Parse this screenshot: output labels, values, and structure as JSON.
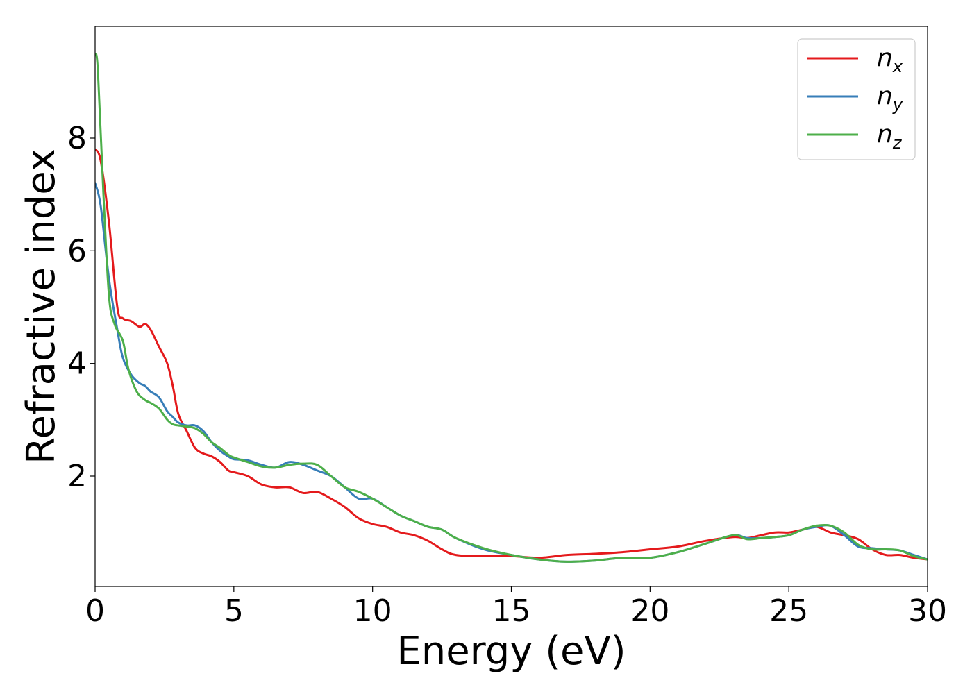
{
  "chart_data": {
    "type": "line",
    "title": "",
    "xlabel": "Energy (eV)",
    "ylabel": "Refractive index",
    "xlim": [
      0,
      30
    ],
    "ylim": [
      0,
      10
    ],
    "xticks": [
      0,
      5,
      10,
      15,
      20,
      25,
      30
    ],
    "xtick_labels": [
      "0",
      "5",
      "10",
      "15",
      "20",
      "25",
      "30"
    ],
    "yticks": [
      2,
      4,
      6,
      8
    ],
    "ytick_labels": [
      "2",
      "4",
      "6",
      "8"
    ],
    "grid": false,
    "legend_position": "top-right",
    "series": [
      {
        "name": "n",
        "subscript": "x",
        "color": "#e41a1c",
        "x": [
          0,
          0.2,
          0.5,
          0.8,
          1.0,
          1.3,
          1.6,
          1.8,
          2.0,
          2.3,
          2.6,
          2.8,
          3.0,
          3.3,
          3.6,
          3.9,
          4.2,
          4.5,
          4.8,
          5.0,
          5.5,
          6.0,
          6.5,
          7.0,
          7.5,
          8.0,
          8.5,
          9.0,
          9.5,
          10.0,
          10.5,
          11.0,
          11.5,
          12.0,
          12.5,
          13.0,
          14.0,
          15.0,
          16.0,
          17.0,
          18.0,
          19.0,
          20.0,
          21.0,
          22.0,
          23.0,
          23.5,
          24.0,
          24.5,
          25.0,
          25.5,
          26.0,
          26.5,
          27.0,
          27.5,
          28.0,
          28.5,
          29.0,
          29.5,
          30.0
        ],
        "y": [
          7.8,
          7.6,
          6.5,
          5.0,
          4.8,
          4.75,
          4.65,
          4.7,
          4.6,
          4.3,
          4.0,
          3.6,
          3.1,
          2.8,
          2.5,
          2.4,
          2.35,
          2.25,
          2.1,
          2.07,
          2.0,
          1.85,
          1.8,
          1.8,
          1.7,
          1.72,
          1.6,
          1.45,
          1.25,
          1.15,
          1.1,
          1.0,
          0.95,
          0.85,
          0.7,
          0.6,
          0.58,
          0.58,
          0.55,
          0.6,
          0.62,
          0.65,
          0.7,
          0.75,
          0.85,
          0.92,
          0.9,
          0.95,
          1.0,
          1.0,
          1.05,
          1.1,
          1.0,
          0.95,
          0.88,
          0.7,
          0.6,
          0.6,
          0.55,
          0.52
        ]
      },
      {
        "name": "n",
        "subscript": "y",
        "color": "#377eb8",
        "x": [
          0,
          0.2,
          0.5,
          0.8,
          1.0,
          1.3,
          1.6,
          1.8,
          2.0,
          2.3,
          2.6,
          2.8,
          3.0,
          3.3,
          3.6,
          3.9,
          4.2,
          4.5,
          4.8,
          5.0,
          5.5,
          6.0,
          6.5,
          7.0,
          7.5,
          8.0,
          8.5,
          9.0,
          9.5,
          10.0,
          10.5,
          11.0,
          11.5,
          12.0,
          12.5,
          13.0,
          14.0,
          15.0,
          16.0,
          17.0,
          18.0,
          19.0,
          20.0,
          21.0,
          22.0,
          23.0,
          23.5,
          24.0,
          24.5,
          25.0,
          25.5,
          26.0,
          26.5,
          27.0,
          27.5,
          28.0,
          28.5,
          29.0,
          29.5,
          30.0
        ],
        "y": [
          7.2,
          6.8,
          5.5,
          4.6,
          4.1,
          3.8,
          3.65,
          3.6,
          3.5,
          3.4,
          3.15,
          3.05,
          2.95,
          2.9,
          2.9,
          2.8,
          2.6,
          2.45,
          2.35,
          2.3,
          2.28,
          2.2,
          2.15,
          2.25,
          2.2,
          2.1,
          2.0,
          1.8,
          1.6,
          1.6,
          1.45,
          1.3,
          1.2,
          1.1,
          1.05,
          0.9,
          0.7,
          0.6,
          0.52,
          0.48,
          0.5,
          0.55,
          0.55,
          0.65,
          0.8,
          0.95,
          0.9,
          0.9,
          0.92,
          0.95,
          1.05,
          1.1,
          1.12,
          0.95,
          0.75,
          0.72,
          0.7,
          0.68,
          0.6,
          0.52
        ]
      },
      {
        "name": "n",
        "subscript": "z",
        "color": "#4daf4a",
        "x": [
          0,
          0.1,
          0.3,
          0.5,
          0.7,
          1.0,
          1.2,
          1.5,
          1.8,
          2.0,
          2.3,
          2.6,
          2.8,
          3.0,
          3.3,
          3.6,
          3.9,
          4.2,
          4.5,
          4.8,
          5.0,
          5.5,
          6.0,
          6.5,
          7.0,
          7.5,
          8.0,
          8.5,
          9.0,
          9.5,
          10.0,
          10.5,
          11.0,
          11.5,
          12.0,
          12.5,
          13.0,
          14.0,
          15.0,
          16.0,
          17.0,
          18.0,
          19.0,
          20.0,
          21.0,
          22.0,
          23.0,
          23.5,
          24.0,
          24.5,
          25.0,
          25.5,
          26.0,
          26.5,
          27.0,
          27.5,
          28.0,
          28.5,
          29.0,
          29.5,
          30.0
        ],
        "y": [
          9.5,
          9.2,
          7.0,
          5.2,
          4.7,
          4.4,
          3.9,
          3.5,
          3.35,
          3.3,
          3.2,
          3.0,
          2.92,
          2.9,
          2.88,
          2.85,
          2.75,
          2.6,
          2.5,
          2.38,
          2.33,
          2.25,
          2.17,
          2.15,
          2.2,
          2.22,
          2.2,
          2.0,
          1.8,
          1.72,
          1.6,
          1.45,
          1.3,
          1.2,
          1.1,
          1.05,
          0.9,
          0.72,
          0.6,
          0.52,
          0.48,
          0.5,
          0.55,
          0.55,
          0.65,
          0.8,
          0.95,
          0.88,
          0.9,
          0.92,
          0.95,
          1.05,
          1.12,
          1.12,
          1.0,
          0.78,
          0.7,
          0.7,
          0.68,
          0.58,
          0.52
        ]
      }
    ]
  }
}
